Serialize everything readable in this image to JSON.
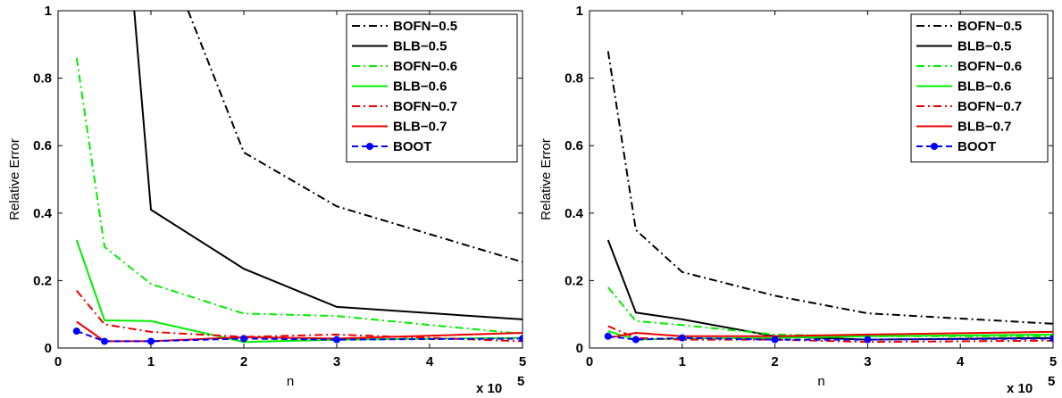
{
  "chart_data": [
    {
      "type": "line",
      "xlabel": "n",
      "ylabel": "Relative Error",
      "x_multiplier_label": "x 10",
      "x_multiplier_exponent": "5",
      "xlim": [
        0,
        5
      ],
      "ylim": [
        0,
        1
      ],
      "xticks": [
        "0",
        "1",
        "2",
        "3",
        "4",
        "5"
      ],
      "yticks": [
        "0",
        "0.2",
        "0.4",
        "0.6",
        "0.8",
        "1"
      ],
      "grid": false,
      "legend_position": "top-right",
      "x": [
        0.2,
        0.5,
        1,
        2,
        3,
        5
      ],
      "series": [
        {
          "name": "BOFN−0.5",
          "color": "#000000",
          "dash": "dashdot",
          "marker": "",
          "values": [
            null,
            null,
            null,
            0.58,
            0.42,
            0.255
          ],
          "extra_points": [
            [
              1.4,
              1.0
            ]
          ]
        },
        {
          "name": "BLB−0.5",
          "color": "#000000",
          "dash": "solid",
          "marker": "",
          "values": [
            null,
            null,
            0.41,
            0.235,
            0.122,
            0.085
          ],
          "extra_points": [
            [
              0.82,
              1.0
            ]
          ]
        },
        {
          "name": "BOFN−0.6",
          "color": "#00ee00",
          "dash": "dashdot",
          "marker": "",
          "values": [
            0.86,
            0.3,
            0.19,
            0.102,
            0.095,
            0.042
          ]
        },
        {
          "name": "BLB−0.6",
          "color": "#00ee00",
          "dash": "solid",
          "marker": "",
          "values": [
            0.32,
            0.082,
            0.08,
            0.018,
            0.025,
            0.03
          ]
        },
        {
          "name": "BOFN−0.7",
          "color": "#ee0000",
          "dash": "dashdot",
          "marker": "",
          "values": [
            0.17,
            0.07,
            0.048,
            0.033,
            0.04,
            0.02
          ]
        },
        {
          "name": "BLB−0.7",
          "color": "#ee0000",
          "dash": "solid",
          "marker": "",
          "values": [
            0.078,
            0.02,
            0.02,
            0.032,
            0.028,
            0.045
          ]
        },
        {
          "name": "BOOT",
          "color": "#0000ff",
          "dash": "dashed",
          "marker": "circle",
          "values": [
            0.05,
            0.02,
            0.02,
            0.028,
            0.025,
            0.028
          ]
        }
      ]
    },
    {
      "type": "line",
      "xlabel": "n",
      "ylabel": "Relative Error",
      "x_multiplier_label": "x 10",
      "x_multiplier_exponent": "5",
      "xlim": [
        0,
        5
      ],
      "ylim": [
        0,
        1
      ],
      "xticks": [
        "0",
        "1",
        "2",
        "3",
        "4",
        "5"
      ],
      "yticks": [
        "0",
        "0.2",
        "0.4",
        "0.6",
        "0.8",
        "1"
      ],
      "grid": false,
      "legend_position": "top-right",
      "x": [
        0.2,
        0.5,
        1,
        2,
        3,
        5
      ],
      "series": [
        {
          "name": "BOFN−0.5",
          "color": "#000000",
          "dash": "dashdot",
          "marker": "",
          "values": [
            0.88,
            0.35,
            0.225,
            0.155,
            0.103,
            0.072
          ]
        },
        {
          "name": "BLB−0.5",
          "color": "#000000",
          "dash": "solid",
          "marker": "",
          "values": [
            0.32,
            0.105,
            0.085,
            0.035,
            0.025,
            0.03
          ]
        },
        {
          "name": "BOFN−0.6",
          "color": "#00ee00",
          "dash": "dashdot",
          "marker": "",
          "values": [
            0.18,
            0.08,
            0.068,
            0.04,
            0.035,
            0.035
          ]
        },
        {
          "name": "BLB−0.6",
          "color": "#00ee00",
          "dash": "solid",
          "marker": "",
          "values": [
            0.05,
            0.025,
            0.028,
            0.03,
            0.035,
            0.04
          ]
        },
        {
          "name": "BOFN−0.7",
          "color": "#ee0000",
          "dash": "dashdot",
          "marker": "",
          "values": [
            0.065,
            0.03,
            0.025,
            0.025,
            0.018,
            0.022
          ]
        },
        {
          "name": "BLB−0.7",
          "color": "#ee0000",
          "dash": "solid",
          "marker": "",
          "values": [
            0.03,
            0.045,
            0.035,
            0.035,
            0.04,
            0.048
          ]
        },
        {
          "name": "BOOT",
          "color": "#0000ff",
          "dash": "dashed",
          "marker": "circle",
          "values": [
            0.035,
            0.025,
            0.03,
            0.025,
            0.025,
            0.028
          ]
        }
      ]
    }
  ]
}
